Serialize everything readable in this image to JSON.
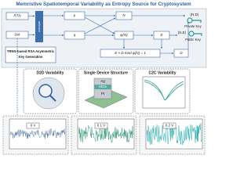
{
  "header": {
    "title": "Memristive Spatiotemporal Variability as Entropy Source for Cryptosystem"
  },
  "rsa": {
    "inputs": [
      "RTN",
      "Set"
    ],
    "selector": "selector",
    "primes": [
      "p",
      "q"
    ],
    "modulus": "N",
    "totient": "φ(N)",
    "public_exponent": "E",
    "equation": "E × D mod φ(N) = 1",
    "private_exponent": "D",
    "public_pair": "(N,E)",
    "private_pair": "(N,D)",
    "private_key": "Private Key",
    "public_key": "Public Key",
    "caption": [
      "TRNG-based RSA Asymmetric",
      "Key Generation"
    ]
  },
  "panels": [
    {
      "title": "D2D Variability"
    },
    {
      "title": "Single Device Structure",
      "layers": [
        "Ag",
        "HfOx",
        "Pt"
      ]
    },
    {
      "title": "C2C Variability"
    }
  ],
  "noise_plots": [
    {
      "label": "0 V"
    },
    {
      "label": "0.1 V"
    },
    {
      "label": "0.2 V"
    }
  ]
}
